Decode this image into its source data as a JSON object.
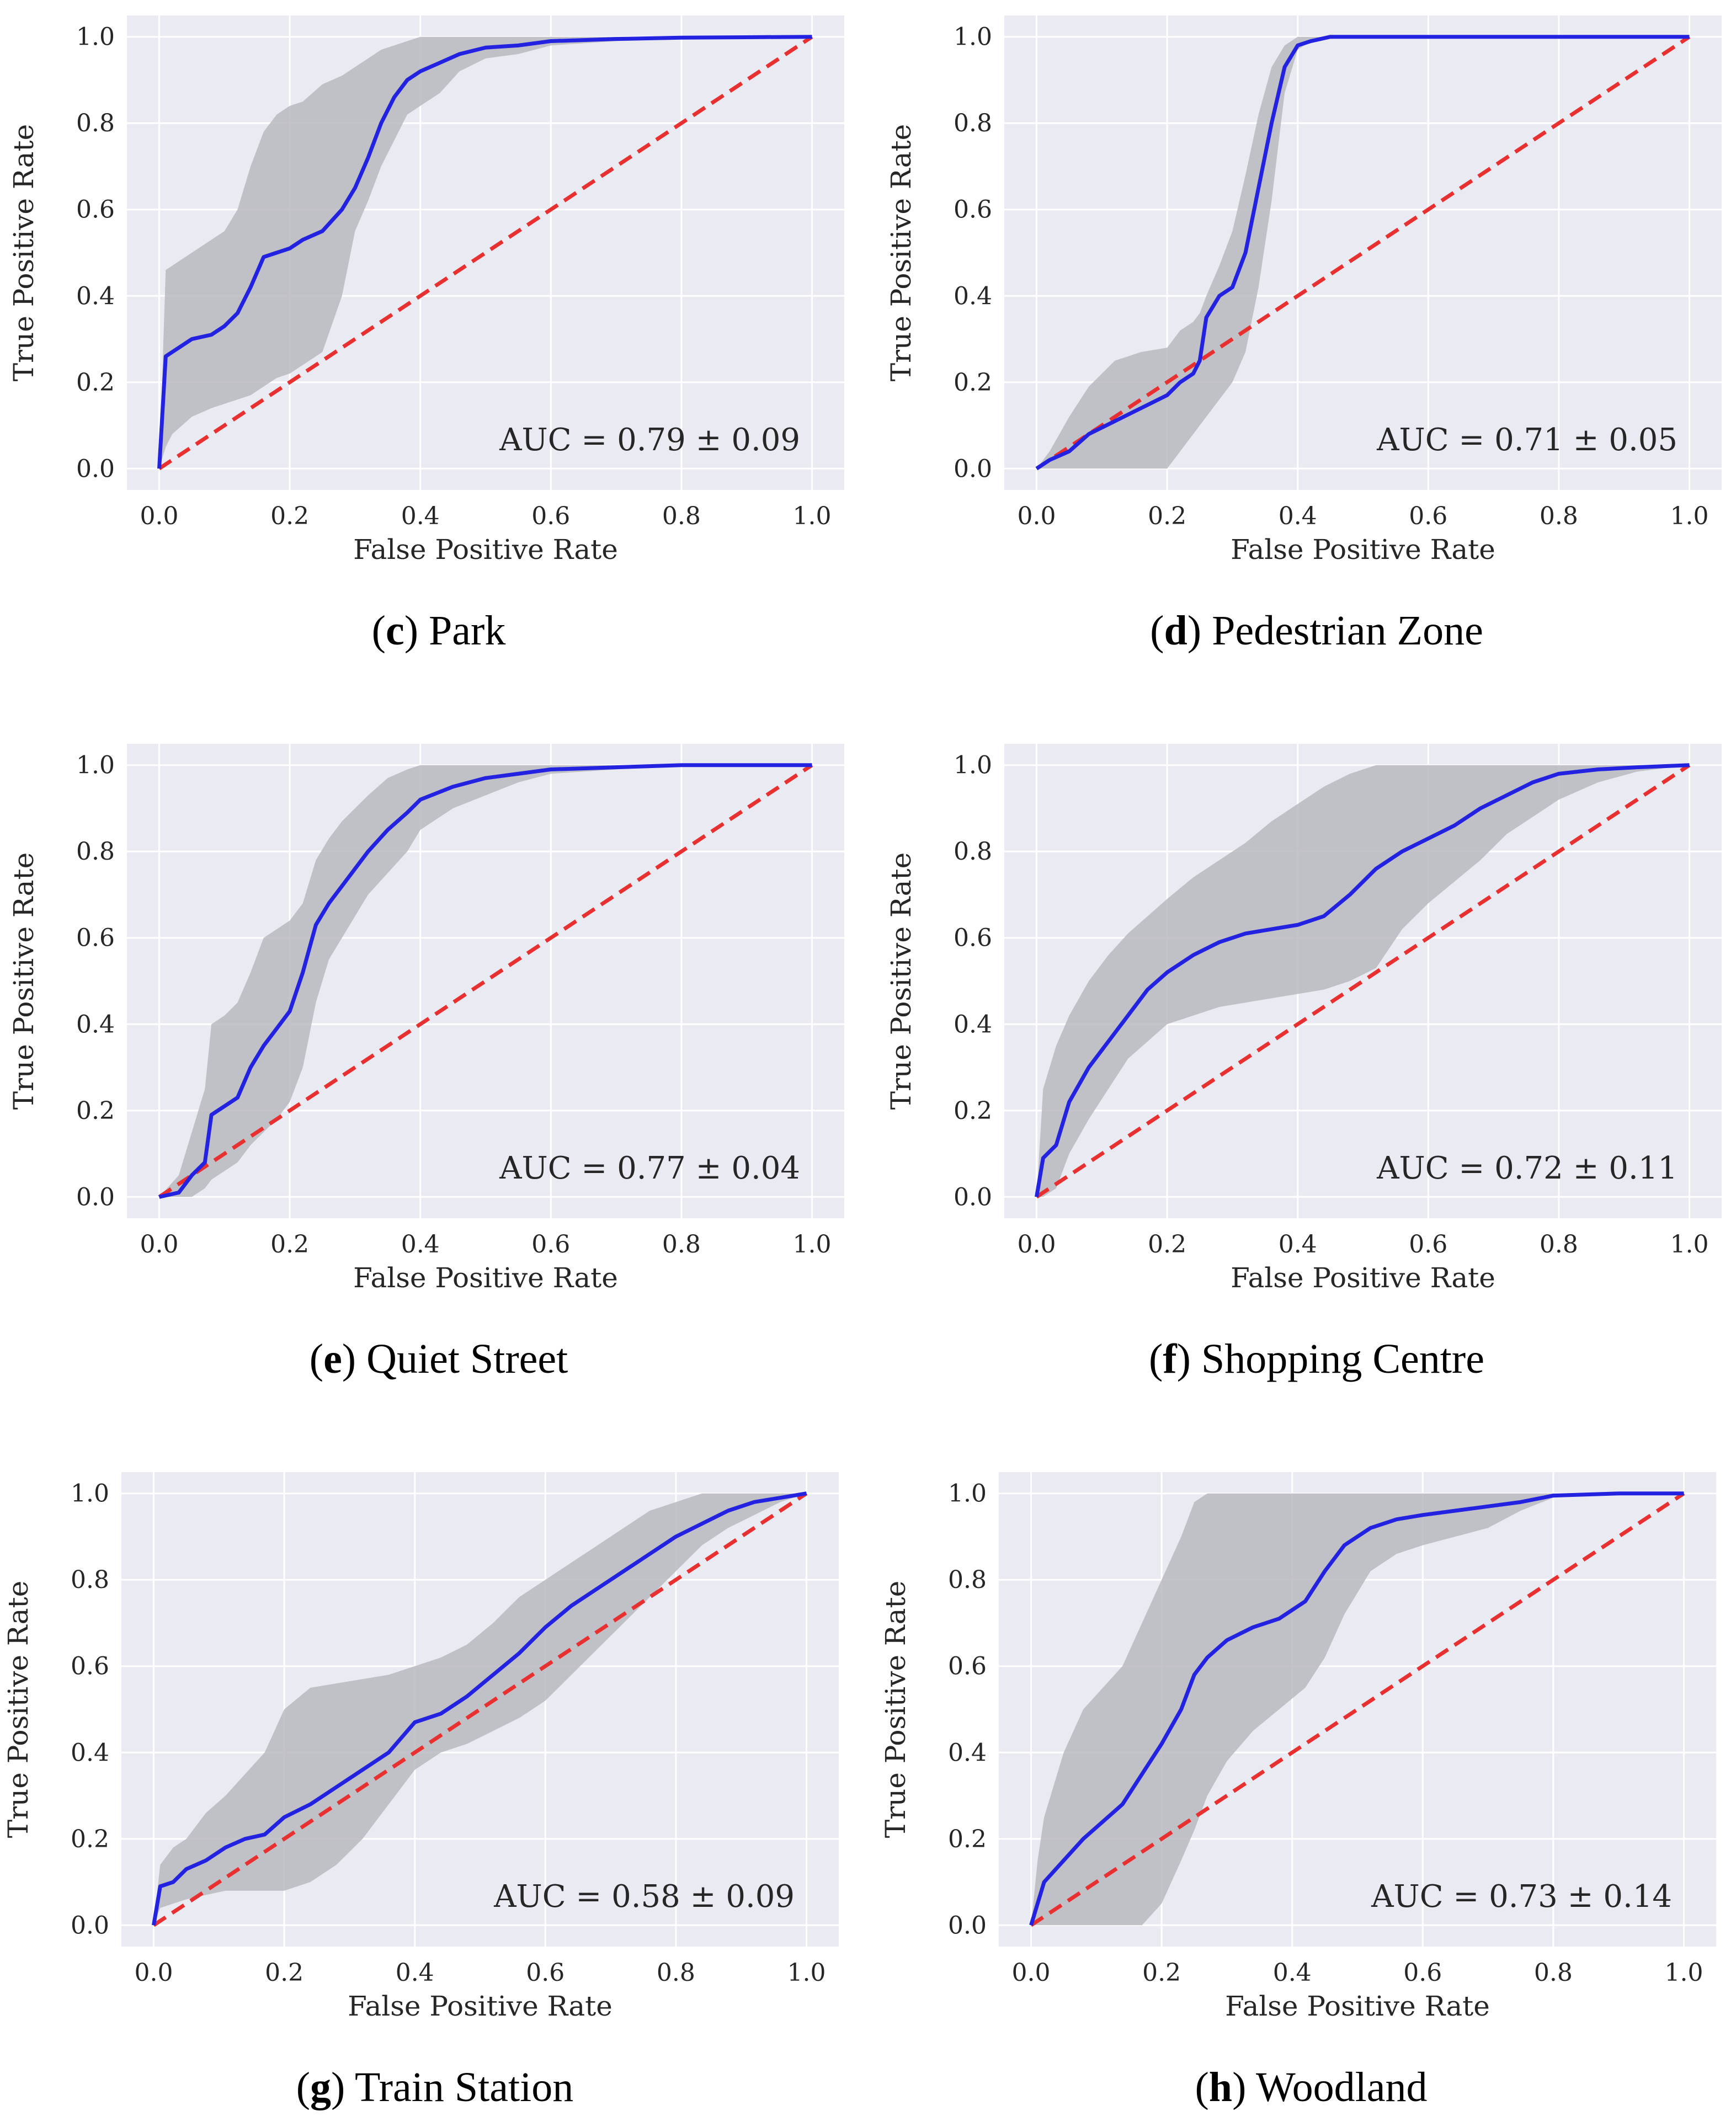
{
  "panels": [
    {
      "letter": "c",
      "name": "Park",
      "auc_label": "AUC = 0.79 ± 0.09"
    },
    {
      "letter": "d",
      "name": "Pedestrian Zone",
      "auc_label": "AUC = 0.71 ± 0.05"
    },
    {
      "letter": "e",
      "name": "Quiet Street",
      "auc_label": "AUC = 0.77 ± 0.04"
    },
    {
      "letter": "f",
      "name": "Shopping Centre",
      "auc_label": "AUC = 0.72 ± 0.11"
    },
    {
      "letter": "g",
      "name": "Train Station",
      "auc_label": "AUC = 0.58 ± 0.09"
    },
    {
      "letter": "h",
      "name": "Woodland",
      "auc_label": "AUC = 0.73 ± 0.14"
    }
  ],
  "colors": {
    "mean": "#2222e0",
    "chance": "#e83030",
    "band": "#b8b8bf",
    "bg": "#eaeaf2",
    "grid": "#ffffff"
  },
  "chart_data": [
    {
      "type": "line",
      "title": "Park",
      "xlabel": "False Positive Rate",
      "ylabel": "True Positive Rate",
      "xlim": [
        0,
        1
      ],
      "ylim": [
        0,
        1
      ],
      "xticks": [
        "0.0",
        "0.2",
        "0.4",
        "0.6",
        "0.8",
        "1.0"
      ],
      "yticks": [
        "0.0",
        "0.2",
        "0.4",
        "0.6",
        "0.8",
        "1.0"
      ],
      "mean_fpr": [
        0,
        0.01,
        0.02,
        0.05,
        0.08,
        0.1,
        0.12,
        0.14,
        0.16,
        0.18,
        0.2,
        0.22,
        0.25,
        0.28,
        0.3,
        0.32,
        0.34,
        0.36,
        0.38,
        0.4,
        0.43,
        0.46,
        0.5,
        0.55,
        0.6,
        0.7,
        0.8,
        0.9,
        1.0
      ],
      "mean_tpr": [
        0,
        0.26,
        0.27,
        0.3,
        0.31,
        0.33,
        0.36,
        0.42,
        0.49,
        0.5,
        0.51,
        0.53,
        0.55,
        0.6,
        0.65,
        0.72,
        0.8,
        0.86,
        0.9,
        0.92,
        0.94,
        0.96,
        0.975,
        0.98,
        0.99,
        0.995,
        0.998,
        0.999,
        1.0
      ],
      "band_upper": [
        0,
        0.46,
        0.47,
        0.5,
        0.53,
        0.55,
        0.6,
        0.7,
        0.78,
        0.82,
        0.84,
        0.85,
        0.89,
        0.91,
        0.93,
        0.95,
        0.97,
        0.98,
        0.99,
        1.0,
        1.0,
        1.0,
        1.0,
        1.0,
        1.0,
        1.0,
        1.0,
        1.0,
        1.0
      ],
      "band_lower": [
        0,
        0.05,
        0.08,
        0.12,
        0.14,
        0.15,
        0.16,
        0.17,
        0.19,
        0.21,
        0.22,
        0.24,
        0.27,
        0.4,
        0.55,
        0.62,
        0.7,
        0.76,
        0.82,
        0.84,
        0.87,
        0.92,
        0.95,
        0.96,
        0.98,
        0.99,
        0.995,
        0.998,
        1.0
      ],
      "chance": [
        [
          0,
          0
        ],
        [
          1,
          1
        ]
      ]
    },
    {
      "type": "line",
      "title": "Pedestrian Zone",
      "xlabel": "False Positive Rate",
      "ylabel": "True Positive Rate",
      "xlim": [
        0,
        1
      ],
      "ylim": [
        0,
        1
      ],
      "xticks": [
        "0.0",
        "0.2",
        "0.4",
        "0.6",
        "0.8",
        "1.0"
      ],
      "yticks": [
        "0.0",
        "0.2",
        "0.4",
        "0.6",
        "0.8",
        "1.0"
      ],
      "mean_fpr": [
        0,
        0.02,
        0.05,
        0.08,
        0.12,
        0.16,
        0.2,
        0.22,
        0.24,
        0.25,
        0.26,
        0.28,
        0.3,
        0.32,
        0.34,
        0.36,
        0.38,
        0.4,
        0.42,
        0.45,
        0.5,
        0.6,
        0.8,
        1.0
      ],
      "mean_tpr": [
        0,
        0.02,
        0.04,
        0.08,
        0.11,
        0.14,
        0.17,
        0.2,
        0.22,
        0.25,
        0.35,
        0.4,
        0.42,
        0.5,
        0.65,
        0.8,
        0.93,
        0.98,
        0.99,
        1.0,
        1.0,
        1.0,
        1.0,
        1.0
      ],
      "band_upper": [
        0,
        0.04,
        0.12,
        0.19,
        0.25,
        0.27,
        0.28,
        0.32,
        0.34,
        0.36,
        0.4,
        0.47,
        0.55,
        0.68,
        0.82,
        0.93,
        0.98,
        1.0,
        1.0,
        1.0,
        1.0,
        1.0,
        1.0,
        1.0
      ],
      "band_lower": [
        0,
        0,
        0,
        0,
        0,
        0,
        0,
        0.04,
        0.08,
        0.1,
        0.12,
        0.16,
        0.2,
        0.27,
        0.42,
        0.62,
        0.87,
        0.97,
        0.99,
        1.0,
        1.0,
        1.0,
        1.0,
        1.0
      ],
      "chance": [
        [
          0,
          0
        ],
        [
          1,
          1
        ]
      ]
    },
    {
      "type": "line",
      "title": "Quiet Street",
      "xlabel": "False Positive Rate",
      "ylabel": "True Positive Rate",
      "xlim": [
        0,
        1
      ],
      "ylim": [
        0,
        1
      ],
      "xticks": [
        "0.0",
        "0.2",
        "0.4",
        "0.6",
        "0.8",
        "1.0"
      ],
      "yticks": [
        "0.0",
        "0.2",
        "0.4",
        "0.6",
        "0.8",
        "1.0"
      ],
      "mean_fpr": [
        0,
        0.03,
        0.05,
        0.07,
        0.08,
        0.1,
        0.12,
        0.14,
        0.16,
        0.18,
        0.2,
        0.22,
        0.24,
        0.26,
        0.28,
        0.3,
        0.32,
        0.35,
        0.38,
        0.4,
        0.45,
        0.5,
        0.55,
        0.6,
        0.7,
        0.8,
        0.9,
        1.0
      ],
      "mean_tpr": [
        0,
        0.01,
        0.05,
        0.08,
        0.19,
        0.21,
        0.23,
        0.3,
        0.35,
        0.39,
        0.43,
        0.52,
        0.63,
        0.68,
        0.72,
        0.76,
        0.8,
        0.85,
        0.89,
        0.92,
        0.95,
        0.97,
        0.98,
        0.99,
        0.995,
        1.0,
        1.0,
        1.0
      ],
      "band_upper": [
        0,
        0.05,
        0.15,
        0.25,
        0.4,
        0.42,
        0.45,
        0.52,
        0.6,
        0.62,
        0.64,
        0.68,
        0.78,
        0.83,
        0.87,
        0.9,
        0.93,
        0.97,
        0.99,
        1.0,
        1.0,
        1.0,
        1.0,
        1.0,
        1.0,
        1.0,
        1.0,
        1.0
      ],
      "band_lower": [
        0,
        0,
        0,
        0.02,
        0.04,
        0.06,
        0.08,
        0.12,
        0.15,
        0.18,
        0.22,
        0.3,
        0.45,
        0.55,
        0.6,
        0.65,
        0.7,
        0.75,
        0.8,
        0.85,
        0.9,
        0.93,
        0.96,
        0.98,
        0.99,
        1.0,
        1.0,
        1.0
      ],
      "chance": [
        [
          0,
          0
        ],
        [
          1,
          1
        ]
      ]
    },
    {
      "type": "line",
      "title": "Shopping Centre",
      "xlabel": "False Positive Rate",
      "ylabel": "True Positive Rate",
      "xlim": [
        0,
        1
      ],
      "ylim": [
        0,
        1
      ],
      "xticks": [
        "0.0",
        "0.2",
        "0.4",
        "0.6",
        "0.8",
        "1.0"
      ],
      "yticks": [
        "0.0",
        "0.2",
        "0.4",
        "0.6",
        "0.8",
        "1.0"
      ],
      "mean_fpr": [
        0,
        0.01,
        0.03,
        0.05,
        0.08,
        0.11,
        0.14,
        0.17,
        0.2,
        0.24,
        0.28,
        0.32,
        0.36,
        0.4,
        0.44,
        0.48,
        0.52,
        0.56,
        0.6,
        0.64,
        0.68,
        0.72,
        0.76,
        0.8,
        0.86,
        0.92,
        1.0
      ],
      "mean_tpr": [
        0,
        0.09,
        0.12,
        0.22,
        0.3,
        0.36,
        0.42,
        0.48,
        0.52,
        0.56,
        0.59,
        0.61,
        0.62,
        0.63,
        0.65,
        0.7,
        0.76,
        0.8,
        0.83,
        0.86,
        0.9,
        0.93,
        0.96,
        0.98,
        0.99,
        0.995,
        1.0
      ],
      "band_upper": [
        0,
        0.25,
        0.35,
        0.42,
        0.5,
        0.56,
        0.61,
        0.65,
        0.69,
        0.74,
        0.78,
        0.82,
        0.87,
        0.91,
        0.95,
        0.98,
        1.0,
        1.0,
        1.0,
        1.0,
        1.0,
        1.0,
        1.0,
        1.0,
        1.0,
        1.0,
        1.0
      ],
      "band_lower": [
        0,
        0,
        0.02,
        0.1,
        0.18,
        0.25,
        0.32,
        0.36,
        0.4,
        0.42,
        0.44,
        0.45,
        0.46,
        0.47,
        0.48,
        0.5,
        0.53,
        0.62,
        0.68,
        0.73,
        0.78,
        0.84,
        0.88,
        0.92,
        0.96,
        0.985,
        1.0
      ],
      "chance": [
        [
          0,
          0
        ],
        [
          1,
          1
        ]
      ]
    },
    {
      "type": "line",
      "title": "Train Station",
      "xlabel": "False Positive Rate",
      "ylabel": "True Positive Rate",
      "xlim": [
        0,
        1
      ],
      "ylim": [
        0,
        1
      ],
      "xticks": [
        "0.0",
        "0.2",
        "0.4",
        "0.6",
        "0.8",
        "1.0"
      ],
      "yticks": [
        "0.0",
        "0.2",
        "0.4",
        "0.6",
        "0.8",
        "1.0"
      ],
      "mean_fpr": [
        0,
        0.01,
        0.03,
        0.05,
        0.08,
        0.11,
        0.14,
        0.17,
        0.2,
        0.24,
        0.28,
        0.32,
        0.36,
        0.4,
        0.44,
        0.48,
        0.52,
        0.56,
        0.6,
        0.64,
        0.68,
        0.72,
        0.76,
        0.8,
        0.84,
        0.88,
        0.92,
        0.96,
        1.0
      ],
      "mean_tpr": [
        0,
        0.09,
        0.1,
        0.13,
        0.15,
        0.18,
        0.2,
        0.21,
        0.25,
        0.28,
        0.32,
        0.36,
        0.4,
        0.47,
        0.49,
        0.53,
        0.58,
        0.63,
        0.69,
        0.74,
        0.78,
        0.82,
        0.86,
        0.9,
        0.93,
        0.96,
        0.98,
        0.99,
        1.0
      ],
      "band_upper": [
        0,
        0.14,
        0.18,
        0.2,
        0.26,
        0.3,
        0.35,
        0.4,
        0.5,
        0.55,
        0.56,
        0.57,
        0.58,
        0.6,
        0.62,
        0.65,
        0.7,
        0.76,
        0.8,
        0.84,
        0.88,
        0.92,
        0.96,
        0.98,
        1.0,
        1.0,
        1.0,
        1.0,
        1.0
      ],
      "band_lower": [
        0,
        0.04,
        0.05,
        0.06,
        0.07,
        0.08,
        0.08,
        0.08,
        0.08,
        0.1,
        0.14,
        0.2,
        0.28,
        0.36,
        0.4,
        0.42,
        0.45,
        0.48,
        0.52,
        0.58,
        0.64,
        0.7,
        0.76,
        0.82,
        0.88,
        0.92,
        0.95,
        0.98,
        1.0
      ],
      "chance": [
        [
          0,
          0
        ],
        [
          1,
          1
        ]
      ]
    },
    {
      "type": "line",
      "title": "Woodland",
      "xlabel": "False Positive Rate",
      "ylabel": "True Positive Rate",
      "xlim": [
        0,
        1
      ],
      "ylim": [
        0,
        1
      ],
      "xticks": [
        "0.0",
        "0.2",
        "0.4",
        "0.6",
        "0.8",
        "1.0"
      ],
      "yticks": [
        "0.0",
        "0.2",
        "0.4",
        "0.6",
        "0.8",
        "1.0"
      ],
      "mean_fpr": [
        0,
        0.01,
        0.02,
        0.05,
        0.08,
        0.11,
        0.14,
        0.17,
        0.2,
        0.23,
        0.25,
        0.27,
        0.3,
        0.34,
        0.38,
        0.42,
        0.45,
        0.48,
        0.52,
        0.56,
        0.6,
        0.65,
        0.7,
        0.75,
        0.8,
        0.9,
        1.0
      ],
      "mean_tpr": [
        0,
        0.05,
        0.1,
        0.15,
        0.2,
        0.24,
        0.28,
        0.35,
        0.42,
        0.5,
        0.58,
        0.62,
        0.66,
        0.69,
        0.71,
        0.75,
        0.82,
        0.88,
        0.92,
        0.94,
        0.95,
        0.96,
        0.97,
        0.98,
        0.995,
        1.0,
        1.0
      ],
      "band_upper": [
        0,
        0.15,
        0.25,
        0.4,
        0.5,
        0.55,
        0.6,
        0.7,
        0.8,
        0.9,
        0.98,
        1.0,
        1.0,
        1.0,
        1.0,
        1.0,
        1.0,
        1.0,
        1.0,
        1.0,
        1.0,
        1.0,
        1.0,
        1.0,
        1.0,
        1.0,
        1.0
      ],
      "band_lower": [
        0,
        0,
        0,
        0,
        0,
        0,
        0,
        0,
        0.05,
        0.15,
        0.22,
        0.3,
        0.38,
        0.45,
        0.5,
        0.55,
        0.62,
        0.72,
        0.82,
        0.86,
        0.88,
        0.9,
        0.92,
        0.96,
        0.99,
        1.0,
        1.0
      ],
      "chance": [
        [
          0,
          0
        ],
        [
          1,
          1
        ]
      ]
    }
  ]
}
